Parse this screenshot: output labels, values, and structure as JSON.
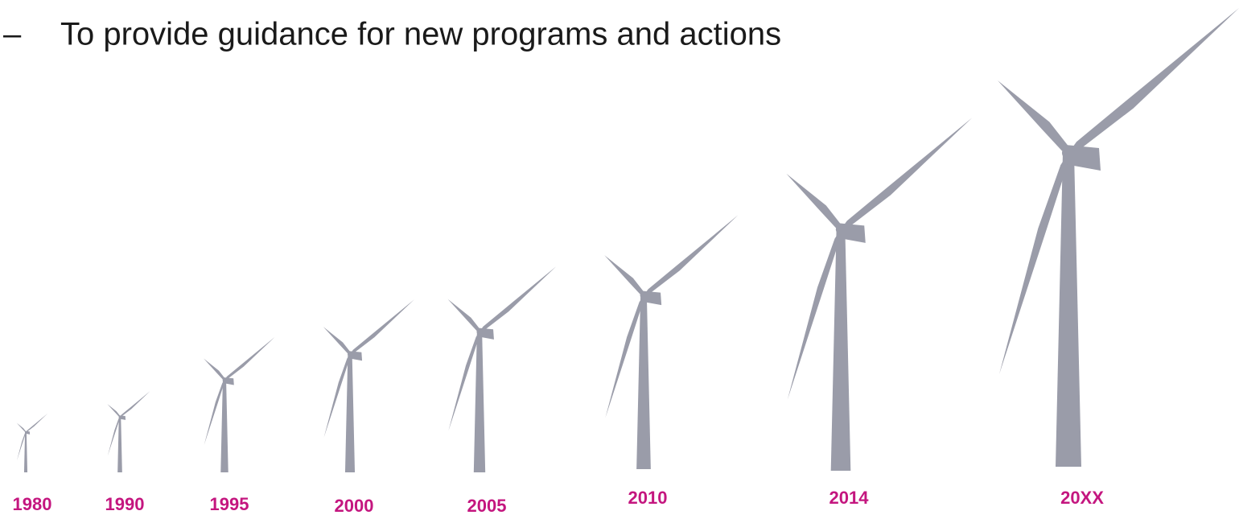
{
  "bullet": {
    "marker": "–",
    "text": "To provide guidance for new programs and actions"
  },
  "turbines": [
    {
      "label": "1980"
    },
    {
      "label": "1990"
    },
    {
      "label": "1995"
    },
    {
      "label": "2000"
    },
    {
      "label": "2005"
    },
    {
      "label": "2010"
    },
    {
      "label": "2014"
    },
    {
      "label": "20XX"
    }
  ]
}
